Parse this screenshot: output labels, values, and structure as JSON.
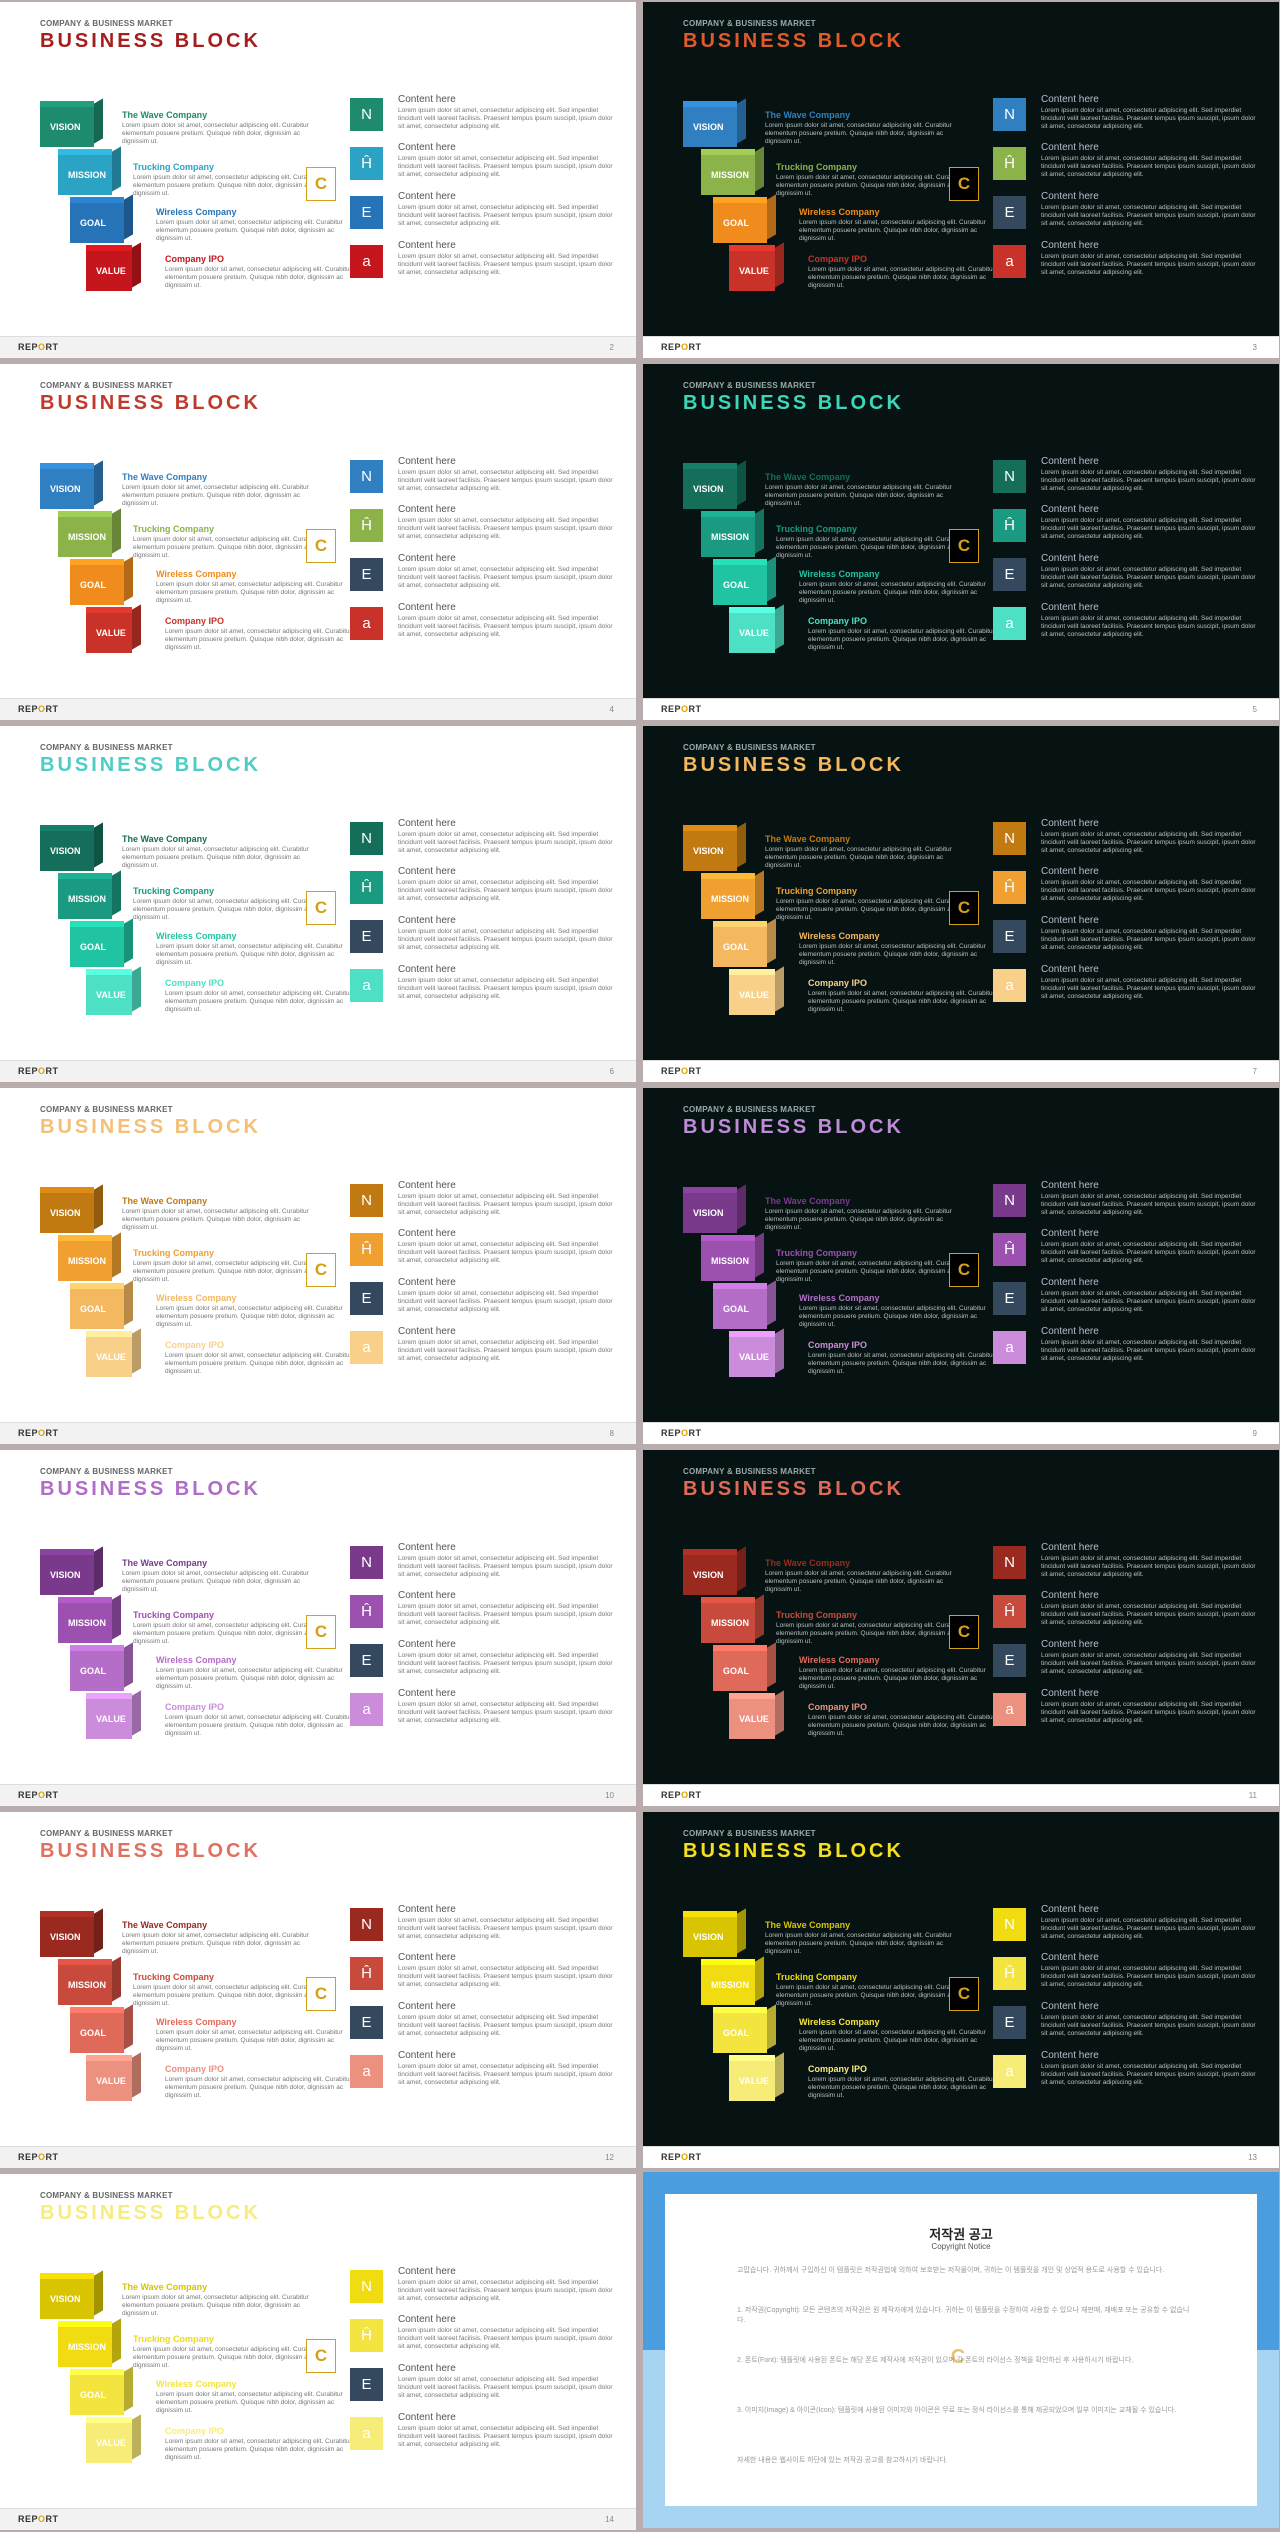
{
  "common": {
    "sup": "COMPANY & BUSINESS MARKET",
    "title": "BUSINESS BLOCK",
    "report_a": "REP",
    "report_o": "O",
    "report_b": "RT",
    "logo": "C",
    "blocks": [
      "VISION",
      "MISSION",
      "GOAL",
      "VALUE"
    ],
    "companies": [
      "The Wave Company",
      "Trucking Company",
      "Wireless Company",
      "Company IPO"
    ],
    "body": "Lorem ipsum dolor sit amet, consectetur adipiscing elit. Curabitur elementum posuere pretium. Quisque nibh dolor, dignissim ac dignissim ut.",
    "content_title": "Content here",
    "content_body": "Lorem ipsum dolor sit amet, consectetur adipiscing elit. Sed imperdiet tincidunt velit laoreet facilisis. Praesent tempus ipsum suscipit, ipsum dolor sit amet, consectetur adipiscing elit.",
    "icon_glyphs": [
      "N",
      "Ĥ",
      "E",
      "a"
    ],
    "icon_names": [
      "n-icon",
      "h-icon",
      "e-icon",
      "a-icon"
    ],
    "slate": "#34495e"
  },
  "slides": [
    {
      "page": "2",
      "theme": "light",
      "title_color": "#a51d1d",
      "block_colors": [
        "#1e8a6e",
        "#2ba3c4",
        "#2673b8",
        "#c4161c"
      ],
      "square_colors": [
        "#1e8a6e",
        "#2ba3c4",
        "#2673b8",
        "#c4161c"
      ]
    },
    {
      "page": "3",
      "theme": "dark",
      "title_color": "#e05a2a",
      "block_colors": [
        "#2f7fc1",
        "#8cb34a",
        "#f08c1e",
        "#c83228"
      ],
      "square_colors": [
        "#2f7fc1",
        "#8cb34a",
        "#34495e",
        "#c83228"
      ]
    },
    {
      "page": "4",
      "theme": "light",
      "title_color": "#c0392b",
      "block_colors": [
        "#2f7fc1",
        "#8cb34a",
        "#f08c1e",
        "#c83228"
      ],
      "square_colors": [
        "#2f7fc1",
        "#8cb34a",
        "#34495e",
        "#c83228"
      ]
    },
    {
      "page": "5",
      "theme": "dark",
      "title_color": "#3dd6b8",
      "block_colors": [
        "#146e5a",
        "#1a9a80",
        "#20c4a2",
        "#4de0c4"
      ],
      "square_colors": [
        "#146e5a",
        "#1a9a80",
        "#34495e",
        "#4de0c4"
      ]
    },
    {
      "page": "6",
      "theme": "light",
      "title_color": "#4ecdc4",
      "block_colors": [
        "#146e5a",
        "#1a9a80",
        "#20c4a2",
        "#4de0c4"
      ],
      "square_colors": [
        "#146e5a",
        "#1a9a80",
        "#34495e",
        "#4de0c4"
      ]
    },
    {
      "page": "7",
      "theme": "dark",
      "title_color": "#f4b860",
      "block_colors": [
        "#c17a12",
        "#f0a030",
        "#f4b860",
        "#f8d08a"
      ],
      "square_colors": [
        "#c17a12",
        "#f0a030",
        "#34495e",
        "#f8d08a"
      ]
    },
    {
      "page": "8",
      "theme": "light",
      "title_color": "#f4c078",
      "block_colors": [
        "#c17a12",
        "#f0a030",
        "#f4b860",
        "#f8d08a"
      ],
      "square_colors": [
        "#c17a12",
        "#f0a030",
        "#34495e",
        "#f8d08a"
      ]
    },
    {
      "page": "9",
      "theme": "dark",
      "title_color": "#c08cd8",
      "block_colors": [
        "#7a3a8c",
        "#9c50b0",
        "#b46ec8",
        "#cc8cdc"
      ],
      "square_colors": [
        "#7a3a8c",
        "#9c50b0",
        "#34495e",
        "#cc8cdc"
      ]
    },
    {
      "page": "10",
      "theme": "light",
      "title_color": "#b06cc8",
      "block_colors": [
        "#7a3a8c",
        "#9c50b0",
        "#b46ec8",
        "#cc8cdc"
      ],
      "square_colors": [
        "#7a3a8c",
        "#9c50b0",
        "#34495e",
        "#cc8cdc"
      ]
    },
    {
      "page": "11",
      "theme": "dark",
      "title_color": "#e06a58",
      "block_colors": [
        "#9a2a20",
        "#c84a3c",
        "#e06a5a",
        "#ec9080"
      ],
      "square_colors": [
        "#9a2a20",
        "#c84a3c",
        "#34495e",
        "#ec9080"
      ]
    },
    {
      "page": "12",
      "theme": "light",
      "title_color": "#e07060",
      "block_colors": [
        "#9a2a20",
        "#c84a3c",
        "#e06a5a",
        "#ec9080"
      ],
      "square_colors": [
        "#9a2a20",
        "#c84a3c",
        "#34495e",
        "#ec9080"
      ]
    },
    {
      "page": "13",
      "theme": "dark",
      "title_color": "#f4e020",
      "block_colors": [
        "#d8c400",
        "#f0dc10",
        "#f4e440",
        "#f8ec78"
      ],
      "square_colors": [
        "#f0dc10",
        "#f4e440",
        "#34495e",
        "#f8ec78"
      ]
    },
    {
      "page": "14",
      "theme": "light",
      "title_color": "#f6ec80",
      "block_colors": [
        "#d8c400",
        "#f0dc10",
        "#f4e440",
        "#f8ec78"
      ],
      "square_colors": [
        "#f0dc10",
        "#f4e440",
        "#34495e",
        "#f8ec78"
      ]
    }
  ],
  "notice": {
    "title": "저작권 공고",
    "subtitle": "Copyright Notice",
    "paras": [
      "고맙습니다. 귀하께서 구입하신 이 템플릿은 저작권법에 의하여 보호받는 저작물이며, 귀하는 이 템플릿을 개인 및 상업적 용도로 사용할 수 있습니다.",
      "1. 저작권(Copyright): 모든 콘텐츠의 저작권은 원 제작자에게 있습니다. 귀하는 이 템플릿을 수정하여 사용할 수 있으나 재판매, 재배포 또는 공유할 수 없습니다.",
      "2. 폰트(Font): 템플릿에 사용된 폰트는 해당 폰트 제작사에 저작권이 있으며 각 폰트의 라이선스 정책을 확인하신 후 사용하시기 바랍니다.",
      "3. 이미지(Image) & 아이콘(Icon): 템플릿에 사용된 이미지와 아이콘은 무료 또는 정식 라이선스를 통해 제공되었으며 일부 이미지는 교체될 수 있습니다.",
      "자세한 내용은 웹사이트 하단에 있는 저작권 공고를 참고하시기 바랍니다."
    ],
    "logo": "C"
  }
}
